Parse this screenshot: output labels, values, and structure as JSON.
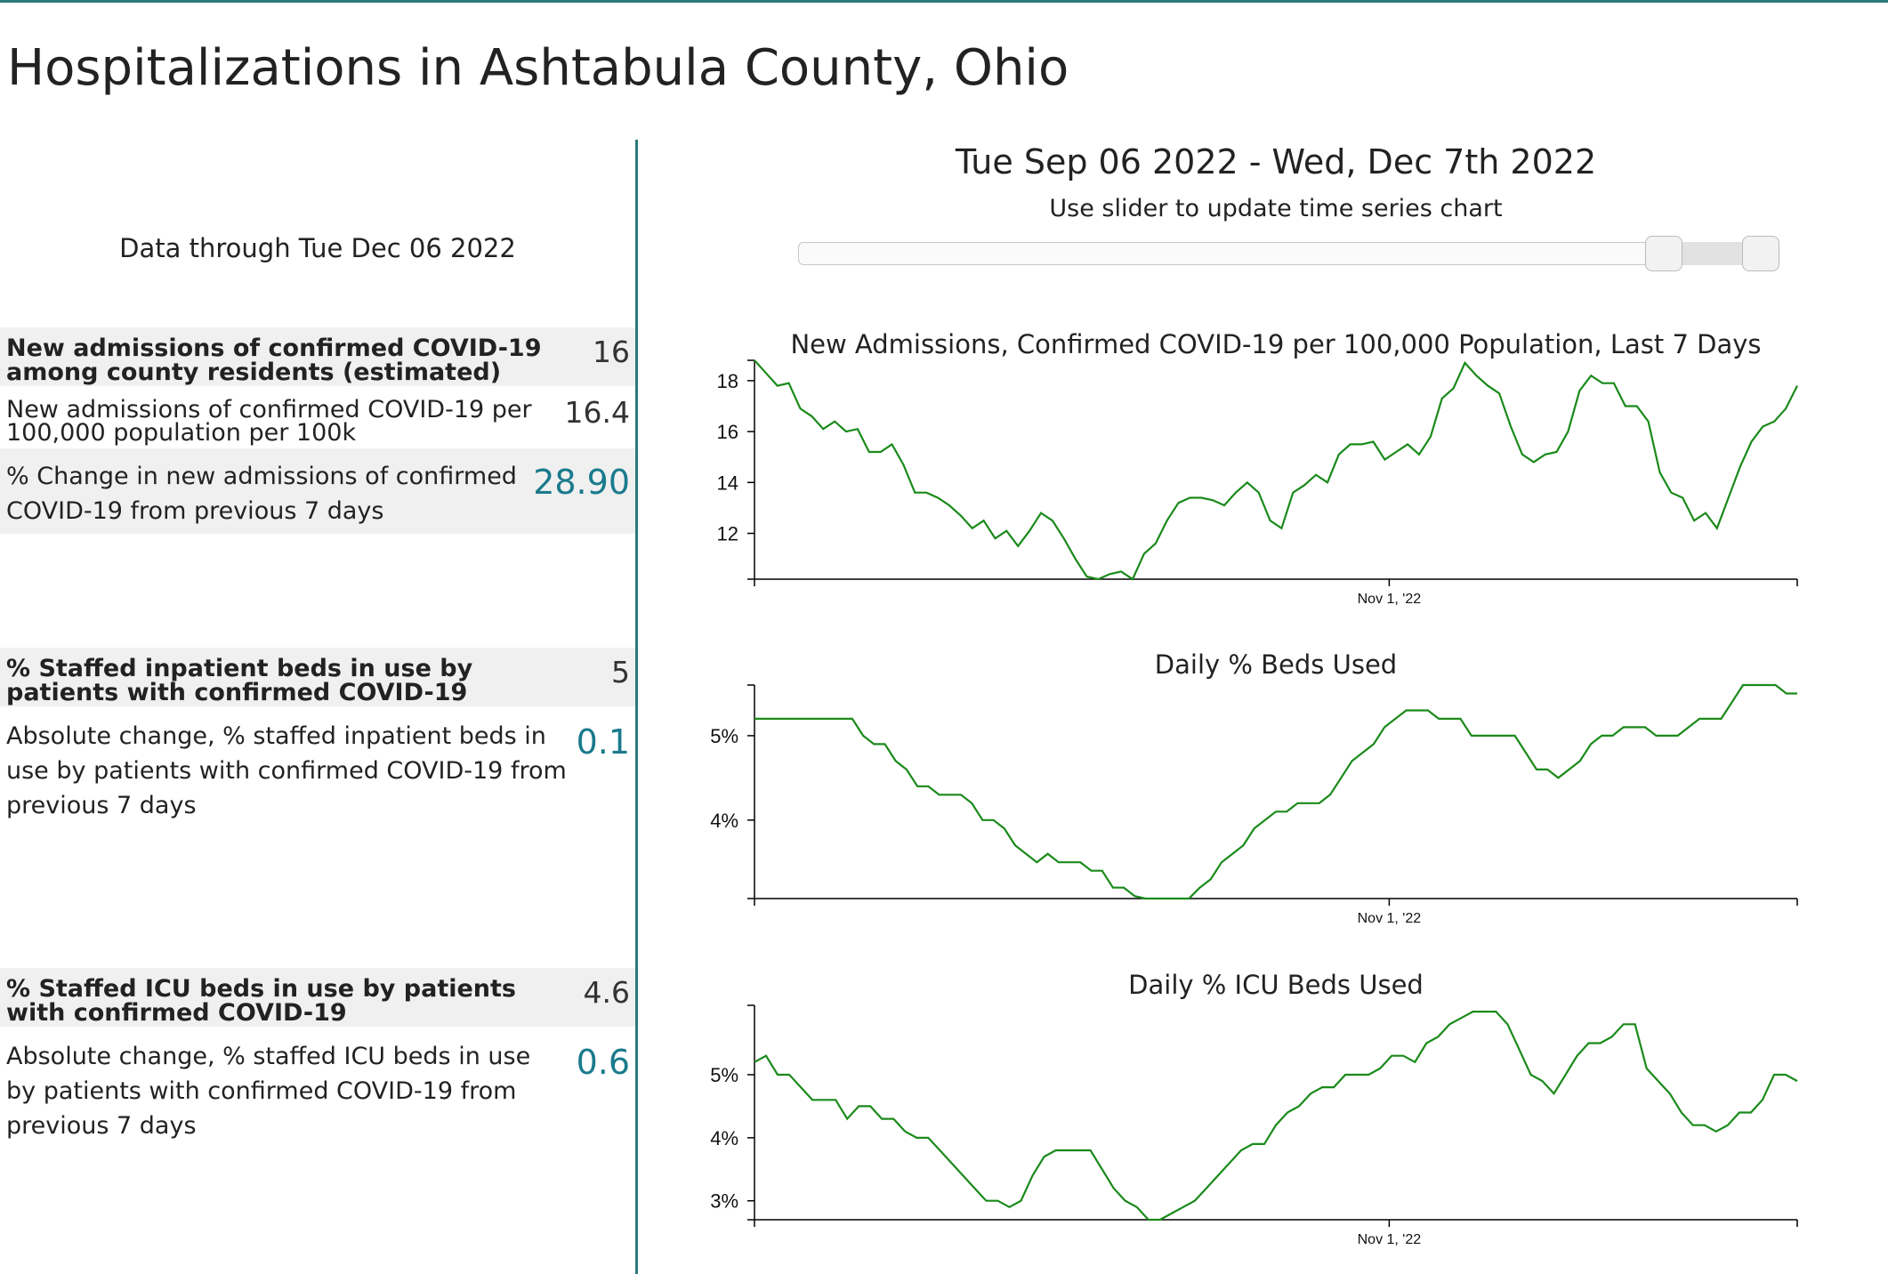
{
  "page": {
    "title": "Hospitalizations in Ashtabula County, Ohio"
  },
  "left": {
    "data_through": "Data through Tue Dec 06 2022",
    "admissions": {
      "head_label": "New admissions of confirmed COVID-19 among county residents (estimated)",
      "head_value": "16",
      "per100k_label": "New admissions of confirmed COVID-19 per 100,000 population per 100k",
      "per100k_value": "16.4",
      "change_label": "% Change in new admissions of confirmed COVID-19 from previous 7 days",
      "change_value": "28.90"
    },
    "beds": {
      "head_label": "% Staffed inpatient beds in use by patients with confirmed COVID-19",
      "head_value": "5",
      "change_label": "Absolute change, % staffed inpatient beds in use by patients with confirmed COVID-19 from previous 7 days",
      "change_value": "0.1"
    },
    "icu": {
      "head_label": "% Staffed ICU beds in use by patients with confirmed COVID-19",
      "head_value": "4.6",
      "change_label": "Absolute change, % staffed ICU beds in use by patients with confirmed COVID-19 from previous 7 days",
      "change_value": "0.6"
    }
  },
  "range": {
    "title": "Tue Sep 06 2022 - Wed, Dec 7th 2022",
    "subtitle": "Use slider to update time series chart",
    "slider_selected_fraction": [
      0.89,
      0.99
    ]
  },
  "colors": {
    "line": "#1a8a1a",
    "accent": "#2a7a78",
    "value_teal": "#1a7a8c"
  },
  "chart_data": [
    {
      "type": "line",
      "title": "New Admissions, Confirmed COVID-19 per 100,000 Population, Last 7 Days",
      "x_start": "2022-09-06",
      "x_end": "2022-12-07",
      "x_ticks": [
        {
          "date": "2022-11-01",
          "label": "Nov 1, '22"
        }
      ],
      "y_ticks": [
        {
          "value": 12,
          "label": "12"
        },
        {
          "value": 14,
          "label": "14"
        },
        {
          "value": 16,
          "label": "16"
        },
        {
          "value": 18,
          "label": "18"
        }
      ],
      "ylim": [
        10.2,
        18.8
      ],
      "series": [
        {
          "values": [
            18.8,
            18.3,
            17.8,
            17.9,
            16.9,
            16.6,
            16.1,
            16.4,
            16.0,
            16.1,
            15.2,
            15.2,
            15.5,
            14.7,
            13.6,
            13.6,
            13.4,
            13.1,
            12.7,
            12.2,
            12.5,
            11.8,
            12.1,
            11.5,
            12.1,
            12.8,
            12.5,
            11.8,
            11.0,
            10.3,
            10.2,
            10.4,
            10.5,
            10.2,
            11.2,
            11.6,
            12.5,
            13.2,
            13.4,
            13.4,
            13.3,
            13.1,
            13.6,
            14.0,
            13.6,
            12.5,
            12.2,
            13.6,
            13.9,
            14.3,
            14.0,
            15.1,
            15.5,
            15.5,
            15.6,
            14.9,
            15.2,
            15.5,
            15.1,
            15.8,
            17.3,
            17.7,
            18.7,
            18.2,
            17.8,
            17.5,
            16.2,
            15.1,
            14.8,
            15.1,
            15.2,
            16.0,
            17.6,
            18.2,
            17.9,
            17.9,
            17.0,
            17.0,
            16.4,
            14.4,
            13.6,
            13.4,
            12.5,
            12.8,
            12.2,
            13.4,
            14.6,
            15.6,
            16.2,
            16.4,
            16.9,
            17.8
          ]
        }
      ]
    },
    {
      "type": "line",
      "title": "Daily % Beds Used",
      "x_start": "2022-09-06",
      "x_end": "2022-12-07",
      "x_ticks": [
        {
          "date": "2022-11-01",
          "label": "Nov 1, '22"
        }
      ],
      "y_ticks": [
        {
          "value": 4,
          "label": "4%"
        },
        {
          "value": 5,
          "label": "5%"
        }
      ],
      "ylim": [
        3.07,
        5.6
      ],
      "series": [
        {
          "values": [
            5.2,
            5.2,
            5.2,
            5.2,
            5.2,
            5.2,
            5.2,
            5.2,
            5.2,
            5.2,
            5.0,
            4.9,
            4.9,
            4.7,
            4.6,
            4.4,
            4.4,
            4.3,
            4.3,
            4.3,
            4.2,
            4.0,
            4.0,
            3.9,
            3.7,
            3.6,
            3.5,
            3.6,
            3.5,
            3.5,
            3.5,
            3.4,
            3.4,
            3.2,
            3.2,
            3.1,
            3.07,
            3.07,
            3.07,
            3.07,
            3.07,
            3.2,
            3.3,
            3.5,
            3.6,
            3.7,
            3.9,
            4.0,
            4.1,
            4.1,
            4.2,
            4.2,
            4.2,
            4.3,
            4.5,
            4.7,
            4.8,
            4.9,
            5.1,
            5.2,
            5.3,
            5.3,
            5.3,
            5.2,
            5.2,
            5.2,
            5.0,
            5.0,
            5.0,
            5.0,
            5.0,
            4.8,
            4.6,
            4.6,
            4.5,
            4.6,
            4.7,
            4.9,
            5.0,
            5.0,
            5.1,
            5.1,
            5.1,
            5.0,
            5.0,
            5.0,
            5.1,
            5.2,
            5.2,
            5.2,
            5.4,
            5.6,
            5.6,
            5.6,
            5.6,
            5.5,
            5.5
          ]
        }
      ]
    },
    {
      "type": "line",
      "title": "Daily % ICU Beds Used",
      "x_start": "2022-09-06",
      "x_end": "2022-12-07",
      "x_ticks": [
        {
          "date": "2022-11-01",
          "label": "Nov 1, '22"
        }
      ],
      "y_ticks": [
        {
          "value": 3,
          "label": "3%"
        },
        {
          "value": 4,
          "label": "4%"
        },
        {
          "value": 5,
          "label": "5%"
        }
      ],
      "ylim": [
        2.7,
        6.1
      ],
      "series": [
        {
          "values": [
            5.2,
            5.3,
            5.0,
            5.0,
            4.8,
            4.6,
            4.6,
            4.6,
            4.3,
            4.5,
            4.5,
            4.3,
            4.3,
            4.1,
            4.0,
            4.0,
            3.8,
            3.6,
            3.4,
            3.2,
            3.0,
            3.0,
            2.9,
            3.0,
            3.4,
            3.7,
            3.8,
            3.8,
            3.8,
            3.8,
            3.5,
            3.2,
            3.0,
            2.9,
            2.7,
            2.7,
            2.8,
            2.9,
            3.0,
            3.2,
            3.4,
            3.6,
            3.8,
            3.9,
            3.9,
            4.2,
            4.4,
            4.5,
            4.7,
            4.8,
            4.8,
            5.0,
            5.0,
            5.0,
            5.1,
            5.3,
            5.3,
            5.2,
            5.5,
            5.6,
            5.8,
            5.9,
            6.0,
            6.0,
            6.0,
            5.8,
            5.4,
            5.0,
            4.9,
            4.7,
            5.0,
            5.3,
            5.5,
            5.5,
            5.6,
            5.8,
            5.8,
            5.1,
            4.9,
            4.7,
            4.4,
            4.2,
            4.2,
            4.1,
            4.2,
            4.4,
            4.4,
            4.6,
            5.0,
            5.0,
            4.9
          ]
        }
      ]
    }
  ]
}
